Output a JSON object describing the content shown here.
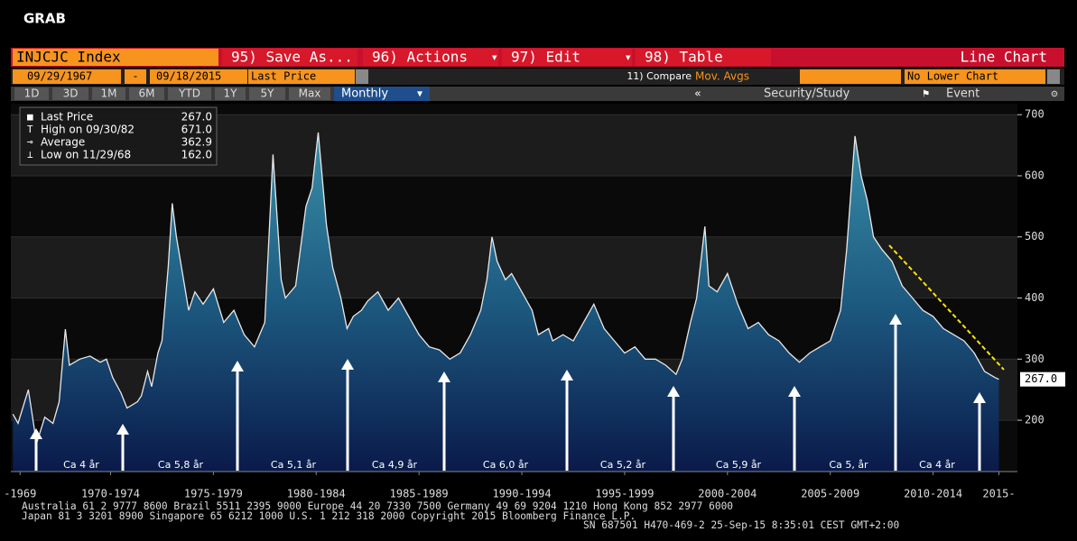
{
  "ui": {
    "window_title": "GRAB",
    "ticker": "INJCJC Index",
    "buttons": [
      "95) Save As...",
      "96) Actions",
      "97) Edit",
      "98) Table"
    ],
    "chart_kind": "Line Chart",
    "start_date": "09/29/1967",
    "date_sep": "-",
    "end_date": "09/18/2015",
    "field": "Last Price",
    "compare": "11) Compare",
    "mov_avgs": "Mov. Avgs",
    "lower_chart": "No Lower Chart",
    "periods": [
      "1D",
      "3D",
      "1M",
      "6M",
      "YTD",
      "1Y",
      "5Y",
      "Max"
    ],
    "frequency": "Monthly",
    "security_study": "Security/Study",
    "event": "Event",
    "footer": [
      "Australia 61 2 9777 8600 Brazil 5511 2395 9000 Europe 44 20 7330 7500 Germany 49 69 9204 1210 Hong Kong 852 2977 6000",
      "Japan 81 3 3201 8900         Singapore 65 6212 1000         U.S. 1 212 318 2000                 Copyright 2015 Bloomberg Finance L.P.",
      "SN 687501 H470-469-2 25-Sep-15  8:35:01 CEST GMT+2:00"
    ]
  },
  "chart_data": {
    "type": "area",
    "legend": [
      {
        "label": "Last Price",
        "value": "267.0"
      },
      {
        "label": "High on 09/30/82",
        "value": "671.0"
      },
      {
        "label": "Average",
        "value": "362.9"
      },
      {
        "label": "Low on 11/29/68",
        "value": "162.0"
      }
    ],
    "last_value_label": "267.0",
    "x": [
      1967.75,
      1968.0,
      1968.5,
      1968.9,
      1969.3,
      1969.7,
      1970.0,
      1970.3,
      1970.5,
      1971.0,
      1971.5,
      1972.0,
      1972.3,
      1972.6,
      1973.0,
      1973.3,
      1973.8,
      1974.0,
      1974.3,
      1974.5,
      1974.8,
      1975.0,
      1975.3,
      1975.5,
      1975.7,
      1976.0,
      1976.3,
      1976.6,
      1977.0,
      1977.5,
      1978.0,
      1978.5,
      1979.0,
      1979.5,
      1980.0,
      1980.4,
      1980.8,
      1981.0,
      1981.5,
      1982.0,
      1982.3,
      1982.6,
      1983.0,
      1983.3,
      1983.7,
      1984.0,
      1984.3,
      1984.7,
      1985.0,
      1985.5,
      1986.0,
      1986.5,
      1987.0,
      1987.5,
      1988.0,
      1988.5,
      1989.0,
      1989.5,
      1990.0,
      1990.5,
      1990.8,
      1991.05,
      1991.3,
      1991.7,
      1992.0,
      1992.5,
      1993.0,
      1993.3,
      1993.8,
      1994.0,
      1994.5,
      1995.0,
      1995.5,
      1996.0,
      1996.5,
      1997.0,
      1997.5,
      1998.0,
      1998.5,
      1999.0,
      1999.5,
      2000.0,
      2000.3,
      2000.7,
      2001.0,
      2001.4,
      2001.6,
      2002.0,
      2002.5,
      2003.0,
      2003.5,
      2004.0,
      2004.5,
      2005.0,
      2005.5,
      2006.0,
      2006.5,
      2007.0,
      2007.5,
      2008.0,
      2008.3,
      2008.7,
      2009.0,
      2009.3,
      2009.6,
      2010.0,
      2010.5,
      2011.0,
      2011.5,
      2012.0,
      2012.5,
      2013.0,
      2013.5,
      2014.0,
      2014.5,
      2015.0,
      2015.5,
      2015.7
    ],
    "values": [
      210,
      195,
      250,
      162,
      205,
      195,
      230,
      349,
      290,
      300,
      305,
      295,
      300,
      270,
      245,
      220,
      230,
      240,
      280,
      255,
      310,
      330,
      450,
      555,
      500,
      440,
      380,
      410,
      390,
      415,
      360,
      380,
      340,
      320,
      360,
      635,
      430,
      400,
      420,
      550,
      580,
      671,
      520,
      450,
      400,
      350,
      370,
      380,
      395,
      410,
      380,
      400,
      370,
      340,
      320,
      315,
      300,
      310,
      340,
      380,
      430,
      500,
      460,
      430,
      440,
      410,
      380,
      340,
      350,
      330,
      340,
      330,
      360,
      390,
      350,
      330,
      310,
      320,
      300,
      300,
      290,
      275,
      300,
      360,
      400,
      517,
      420,
      410,
      440,
      390,
      350,
      360,
      340,
      330,
      310,
      295,
      310,
      320,
      330,
      380,
      480,
      665,
      600,
      560,
      500,
      480,
      460,
      420,
      400,
      380,
      370,
      350,
      340,
      330,
      310,
      280,
      270,
      267
    ],
    "xlim": [
      1967.65,
      2016.6
    ],
    "ylim": [
      116,
      718
    ],
    "xticks": [
      {
        "value": 1968.1,
        "label": "-1969"
      },
      {
        "value": 1972.5,
        "label": "1970-1974"
      },
      {
        "value": 1977.5,
        "label": "1975-1979"
      },
      {
        "value": 1982.5,
        "label": "1980-1984"
      },
      {
        "value": 1987.5,
        "label": "1985-1989"
      },
      {
        "value": 1992.5,
        "label": "1990-1994"
      },
      {
        "value": 1997.5,
        "label": "1995-1999"
      },
      {
        "value": 2002.5,
        "label": "2000-2004"
      },
      {
        "value": 2007.5,
        "label": "2005-2009"
      },
      {
        "value": 2012.5,
        "label": "2010-2014"
      },
      {
        "value": 2015.7,
        "label": "2015-"
      }
    ],
    "yticks": [
      200,
      300,
      400,
      500,
      600,
      700
    ],
    "annotations": [
      "Ca 4 år",
      "Ca 5,8 år",
      "Ca 5,1 år",
      "Ca 4,9 år",
      "Ca 6,0 år",
      "Ca 5,2 år",
      "Ca 5,9 år",
      "Ca 5, år",
      "Ca 4 år"
    ]
  }
}
